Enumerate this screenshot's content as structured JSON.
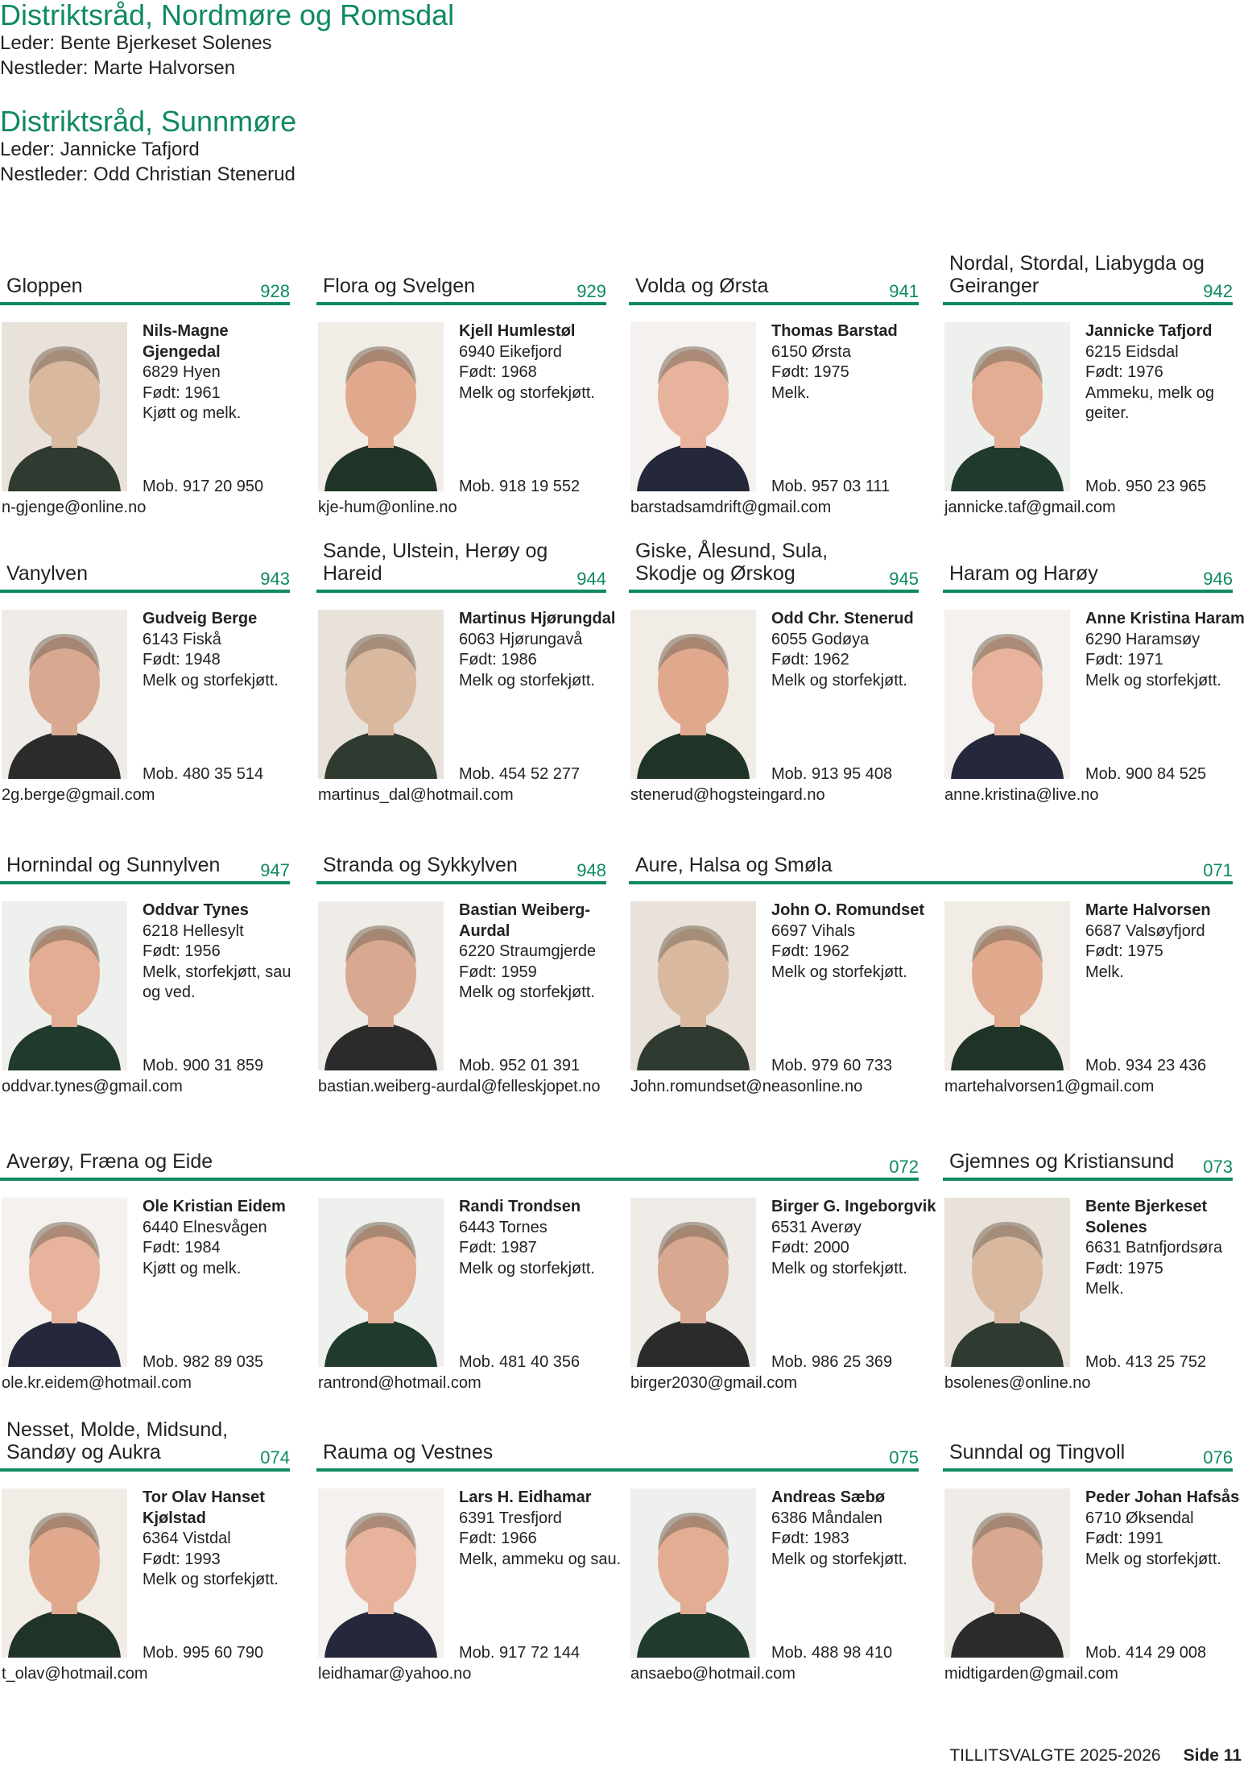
{
  "districts": [
    {
      "title": "Distriktsråd, Nordmøre og Romsdal",
      "leader": "Leder: Bente Bjerkeset Solenes",
      "deputy": "Nestleder: Marte Halvorsen"
    },
    {
      "title": "Distriktsråd, Sunnmøre",
      "leader": "Leder: Jannicke Tafjord",
      "deputy": "Nestleder: Odd Christian Stenerud"
    }
  ],
  "colors": {
    "accent": "#0e8a5f",
    "text": "#222222"
  },
  "rows": [
    {
      "sections": [
        {
          "title": "Gloppen",
          "code": "928",
          "col": 0,
          "span": 1,
          "persons": [
            {
              "name": "Nils-Magne Gjengedal",
              "place": "6829 Hyen",
              "born": "Født: 1961",
              "production": "Kjøtt og melk.",
              "mobile": "Mob. 917 20 950",
              "email": "n-gjenge@online.no"
            }
          ]
        },
        {
          "title": "Flora og Svelgen",
          "code": "929",
          "col": 1,
          "span": 1,
          "persons": [
            {
              "name": "Kjell Humlestøl",
              "place": "6940 Eikefjord",
              "born": "Født: 1968",
              "production": "Melk og storfekjøtt.",
              "mobile": "Mob. 918 19 552",
              "email": "kje-hum@online.no"
            }
          ]
        },
        {
          "title": "Volda og Ørsta",
          "code": "941",
          "col": 2,
          "span": 1,
          "persons": [
            {
              "name": "Thomas Barstad",
              "place": "6150 Ørsta",
              "born": "Født: 1975",
              "production": "Melk.",
              "mobile": "Mob. 957 03 111",
              "email": "barstadsamdrift@gmail.com"
            }
          ]
        },
        {
          "title": "Nordal, Stordal, Liabygda og Geiranger",
          "code": "942",
          "col": 3,
          "span": 1,
          "persons": [
            {
              "name": "Jannicke Tafjord",
              "place": "6215 Eidsdal",
              "born": "Født: 1976",
              "production": "Ammeku, melk og geiter.",
              "mobile": "Mob. 950 23 965",
              "email": "jannicke.taf@gmail.com"
            }
          ]
        }
      ]
    },
    {
      "sections": [
        {
          "title": "Vanylven",
          "code": "943",
          "col": 0,
          "span": 1,
          "persons": [
            {
              "name": "Gudveig Berge",
              "place": "6143 Fiskå",
              "born": "Født: 1948",
              "production": "Melk og storfekjøtt.",
              "mobile": "Mob. 480 35 514",
              "email": "2g.berge@gmail.com"
            }
          ]
        },
        {
          "title": "Sande, Ulstein, Herøy og Hareid",
          "code": "944",
          "col": 1,
          "span": 1,
          "persons": [
            {
              "name": "Martinus Hjørungdal",
              "place": "6063 Hjørungavå",
              "born": "Født: 1986",
              "production": "Melk og storfekjøtt.",
              "mobile": "Mob. 454 52 277",
              "email": "martinus_dal@hotmail.com"
            }
          ]
        },
        {
          "title": "Giske, Ålesund, Sula, Skodje og Ørskog",
          "code": "945",
          "col": 2,
          "span": 1,
          "persons": [
            {
              "name": "Odd Chr. Stenerud",
              "place": "6055 Godøya",
              "born": "Født: 1962",
              "production": "Melk og storfekjøtt.",
              "mobile": "Mob. 913 95 408",
              "email": "stenerud@hogsteingard.no"
            }
          ]
        },
        {
          "title": "Haram og Harøy",
          "code": "946",
          "col": 3,
          "span": 1,
          "persons": [
            {
              "name": "Anne Kristina Haram",
              "place": "6290 Haramsøy",
              "born": "Født: 1971",
              "production": "Melk og storfekjøtt.",
              "mobile": "Mob. 900 84 525",
              "email": "anne.kristina@live.no"
            }
          ]
        }
      ]
    },
    {
      "sections": [
        {
          "title": "Hornindal og Sunnylven",
          "code": "947",
          "col": 0,
          "span": 1,
          "persons": [
            {
              "name": "Oddvar Tynes",
              "place": "6218 Hellesylt",
              "born": "Født: 1956",
              "production": "Melk, storfekjøtt, sau og ved.",
              "mobile": "Mob. 900 31 859",
              "email": "oddvar.tynes@gmail.com"
            }
          ]
        },
        {
          "title": "Stranda og Sykkylven",
          "code": "948",
          "col": 1,
          "span": 1,
          "persons": [
            {
              "name": "Bastian Weiberg-Aurdal",
              "place": "6220 Straumgjerde",
              "born": "Født: 1959",
              "production": "Melk og storfekjøtt.",
              "mobile": "Mob. 952 01 391",
              "email": "bastian.weiberg-aurdal@felleskjopet.no"
            }
          ]
        },
        {
          "title": "Aure, Halsa og Smøla",
          "code": "071",
          "col": 2,
          "span": 2,
          "persons": [
            {
              "name": "John O. Romundset",
              "place": "6697 Vihals",
              "born": "Født: 1962",
              "production": "Melk og storfekjøtt.",
              "mobile": "Mob. 979 60 733",
              "email": "John.romundset@neasonline.no"
            },
            {
              "name": "Marte Halvorsen",
              "place": "6687 Valsøyfjord",
              "born": "Født: 1975",
              "production": "Melk.",
              "mobile": "Mob. 934 23 436",
              "email": "martehalvorsen1@gmail.com"
            }
          ]
        }
      ]
    },
    {
      "sections": [
        {
          "title": "Averøy, Fræna og Eide",
          "code": "072",
          "col": 0,
          "span": 3,
          "persons": [
            {
              "name": "Ole Kristian Eidem",
              "place": "6440 Elnesvågen",
              "born": "Født: 1984",
              "production": "Kjøtt og melk.",
              "mobile": "Mob. 982 89 035",
              "email": "ole.kr.eidem@hotmail.com"
            },
            {
              "name": "Randi Trondsen",
              "place": "6443 Tornes",
              "born": "Født: 1987",
              "production": "Melk og storfekjøtt.",
              "mobile": "Mob. 481 40 356",
              "email": "rantrond@hotmail.com"
            },
            {
              "name": "Birger G. Ingeborgvik",
              "place": "6531 Averøy",
              "born": "Født: 2000",
              "production": "Melk og storfekjøtt.",
              "mobile": "Mob. 986 25 369",
              "email": "birger2030@gmail.com"
            }
          ]
        },
        {
          "title": "Gjemnes og Kristiansund",
          "code": "073",
          "col": 3,
          "span": 1,
          "persons": [
            {
              "name": "Bente Bjerkeset Solenes",
              "place": "6631 Batnfjordsøra",
              "born": "Født: 1975",
              "production": "Melk.",
              "mobile": "Mob. 413 25 752",
              "email": "bsolenes@online.no"
            }
          ]
        }
      ]
    },
    {
      "sections": [
        {
          "title": "Nesset, Molde, Midsund, Sandøy og Aukra",
          "code": "074",
          "col": 0,
          "span": 1,
          "persons": [
            {
              "name": "Tor Olav Hanset Kjølstad",
              "place": "6364 Vistdal",
              "born": "Født: 1993",
              "production": "Melk og storfekjøtt.",
              "mobile": "Mob. 995 60 790",
              "email": "t_olav@hotmail.com"
            }
          ]
        },
        {
          "title": "Rauma og Vestnes",
          "code": "075",
          "col": 1,
          "span": 2,
          "persons": [
            {
              "name": "Lars H. Eidhamar",
              "place": "6391 Tresfjord",
              "born": "Født: 1966",
              "production": "Melk, ammeku og sau.",
              "mobile": "Mob. 917 72 144",
              "email": "leidhamar@yahoo.no"
            },
            {
              "name": "Andreas Sæbø",
              "place": "6386 Måndalen",
              "born": "Født: 1983",
              "production": "Melk og storfekjøtt.",
              "mobile": "Mob. 488 98 410",
              "email": "ansaebo@hotmail.com"
            }
          ]
        },
        {
          "title": "Sunndal og Tingvoll",
          "code": "076",
          "col": 3,
          "span": 1,
          "persons": [
            {
              "name": "Peder Johan Hafsås",
              "place": "6710 Øksendal",
              "born": "Født: 1991",
              "production": "Melk og storfekjøtt.",
              "mobile": "Mob. 414 29 008",
              "email": "midtigarden@gmail.com"
            }
          ]
        }
      ]
    }
  ],
  "footer": {
    "publication": "TILLITSVALGTE 2025-2026",
    "page": "Side 11"
  }
}
